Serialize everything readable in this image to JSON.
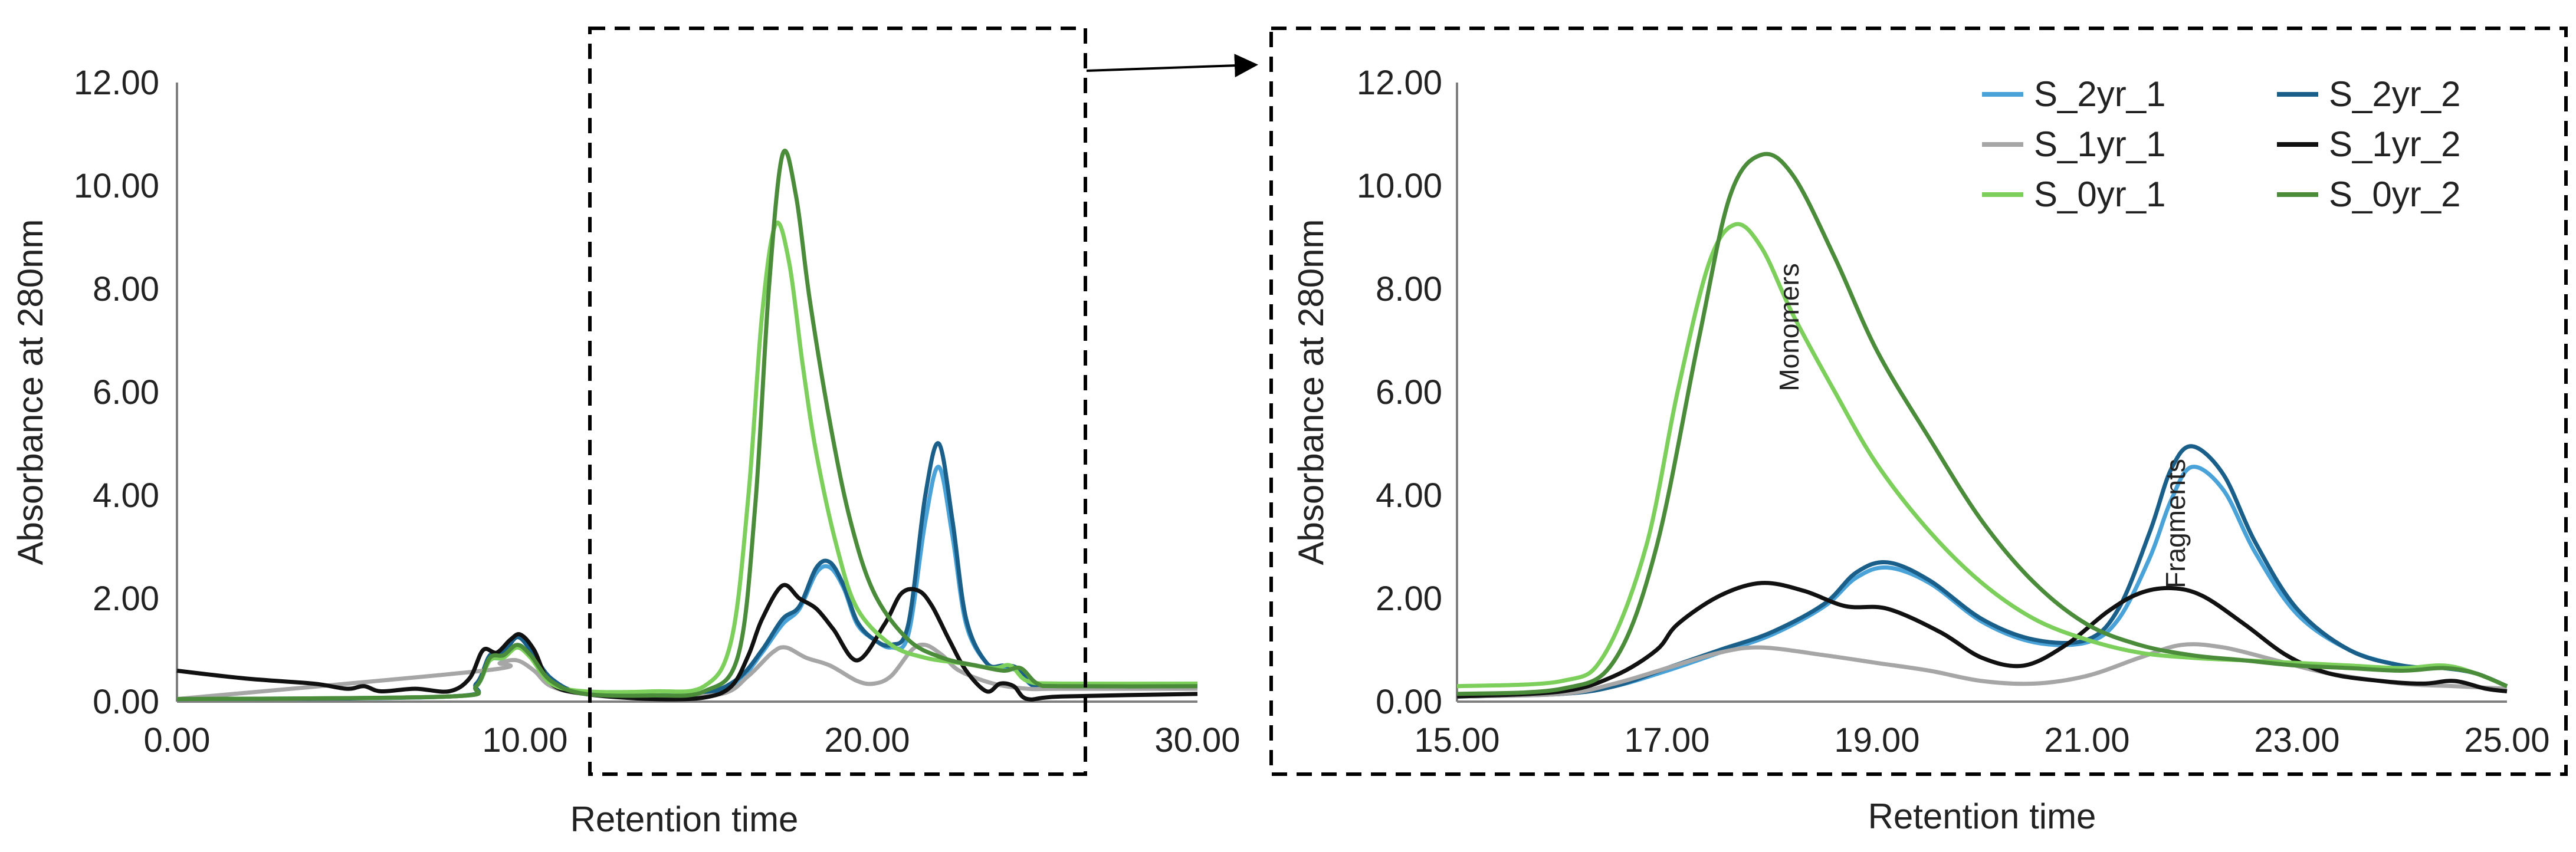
{
  "colors": {
    "axis": "#7f7f7f",
    "text": "#222222",
    "dashed_box": "#000000"
  },
  "chart_data": [
    {
      "id": "full",
      "type": "line",
      "xlabel": "Retention time",
      "ylabel": "Absorbance at 280nm",
      "xlim": [
        0,
        30
      ],
      "ylim": [
        0,
        12
      ],
      "xticks": [
        "0.00",
        "10.00",
        "20.00",
        "30.00"
      ],
      "yticks": [
        "0.00",
        "2.00",
        "4.00",
        "6.00",
        "8.00",
        "10.00",
        "12.00"
      ],
      "zoom_region": [
        12,
        27
      ],
      "grid": false,
      "series": [
        {
          "name": "S_2yr_1",
          "color": "#4aa3d8",
          "x": [
            0,
            8,
            8.8,
            9.2,
            9.6,
            10,
            10.4,
            11,
            12,
            14,
            15.5,
            16.5,
            17.2,
            17.8,
            18.3,
            18.8,
            19.2,
            19.6,
            20,
            20.5,
            21,
            21.5,
            22,
            22.4,
            22.8,
            23.2,
            23.8,
            24.3,
            24.7,
            25.2,
            26,
            30
          ],
          "y": [
            0.05,
            0.1,
            0.3,
            0.8,
            0.85,
            1.1,
            0.9,
            0.4,
            0.15,
            0.12,
            0.15,
            0.4,
            0.95,
            1.5,
            1.8,
            2.5,
            2.6,
            2.2,
            1.5,
            1.2,
            1.05,
            1.3,
            3.5,
            4.55,
            3.2,
            1.5,
            0.75,
            0.65,
            0.6,
            0.3,
            0.3,
            0.28
          ]
        },
        {
          "name": "S_2yr_2",
          "color": "#1a5f8a",
          "x": [
            0,
            8,
            8.8,
            9.2,
            9.6,
            10,
            10.4,
            11,
            12,
            14,
            15.5,
            16.5,
            17.2,
            17.8,
            18.3,
            18.8,
            19.2,
            19.6,
            20,
            20.5,
            21,
            21.5,
            22,
            22.4,
            22.8,
            23.2,
            23.8,
            24.3,
            24.7,
            25.2,
            26,
            30
          ],
          "y": [
            0.05,
            0.1,
            0.35,
            0.9,
            0.95,
            1.25,
            1.0,
            0.45,
            0.15,
            0.12,
            0.15,
            0.45,
            1.0,
            1.6,
            1.85,
            2.6,
            2.7,
            2.25,
            1.55,
            1.2,
            1.1,
            1.5,
            4.0,
            5.0,
            3.5,
            1.6,
            0.75,
            0.7,
            0.65,
            0.3,
            0.3,
            0.28
          ]
        },
        {
          "name": "S_1yr_1",
          "color": "#a6a6a6",
          "x": [
            0,
            9,
            9.5,
            10,
            10.5,
            11,
            12,
            14,
            16,
            16.8,
            17.5,
            17.9,
            18.5,
            19.2,
            20,
            20.5,
            21,
            21.6,
            22,
            22.5,
            23,
            24,
            25,
            26,
            30
          ],
          "y": [
            0.05,
            0.6,
            0.75,
            0.8,
            0.6,
            0.3,
            0.15,
            0.1,
            0.15,
            0.5,
            0.95,
            1.05,
            0.85,
            0.7,
            0.4,
            0.35,
            0.5,
            1.0,
            1.1,
            0.9,
            0.6,
            0.35,
            0.25,
            0.25,
            0.25
          ]
        },
        {
          "name": "S_1yr_2",
          "color": "#111111",
          "x": [
            0,
            2,
            4,
            5,
            5.5,
            6,
            7,
            8,
            8.6,
            9,
            9.4,
            9.8,
            10.1,
            10.5,
            11,
            12,
            14,
            15.5,
            16.3,
            16.8,
            17.2,
            17.8,
            18.3,
            18.8,
            19.3,
            20,
            20.8,
            21.3,
            21.8,
            22.2,
            22.7,
            23.2,
            23.8,
            24.2,
            24.6,
            25,
            26,
            30
          ],
          "y": [
            0.6,
            0.45,
            0.35,
            0.25,
            0.3,
            0.2,
            0.25,
            0.2,
            0.45,
            1.0,
            0.95,
            1.2,
            1.3,
            1.0,
            0.35,
            0.15,
            0.05,
            0.08,
            0.3,
            0.9,
            1.6,
            2.25,
            2.0,
            1.8,
            1.4,
            0.8,
            1.5,
            2.1,
            2.15,
            1.85,
            1.2,
            0.6,
            0.2,
            0.35,
            0.3,
            0.05,
            0.1,
            0.15
          ]
        },
        {
          "name": "S_0yr_1",
          "color": "#7ccf5a",
          "x": [
            0,
            8,
            8.8,
            9.2,
            9.6,
            10,
            10.4,
            11,
            12,
            14,
            15.5,
            16.3,
            16.8,
            17.2,
            17.6,
            18,
            18.4,
            18.8,
            19.4,
            20,
            21,
            22,
            23,
            24,
            24.5,
            25,
            26,
            30
          ],
          "y": [
            0.05,
            0.1,
            0.3,
            0.8,
            0.85,
            1.05,
            0.85,
            0.35,
            0.2,
            0.2,
            0.3,
            1.2,
            4.0,
            7.5,
            9.25,
            8.5,
            6.5,
            4.8,
            3.0,
            1.8,
            1.1,
            0.85,
            0.75,
            0.65,
            0.7,
            0.4,
            0.35,
            0.35
          ]
        },
        {
          "name": "S_0yr_2",
          "color": "#4a8c3a",
          "x": [
            0,
            8,
            8.8,
            9.2,
            9.6,
            10,
            10.4,
            11,
            12,
            14,
            15.5,
            16.5,
            17,
            17.4,
            17.8,
            18.2,
            18.6,
            19.2,
            19.8,
            20.5,
            21.5,
            22.5,
            23.5,
            24.3,
            24.8,
            25.3,
            26,
            30
          ],
          "y": [
            0.05,
            0.1,
            0.3,
            0.85,
            0.9,
            1.1,
            0.9,
            0.4,
            0.15,
            0.12,
            0.2,
            0.9,
            3.8,
            8.0,
            10.6,
            9.8,
            7.8,
            5.4,
            3.5,
            2.1,
            1.2,
            0.85,
            0.7,
            0.6,
            0.65,
            0.35,
            0.3,
            0.3
          ]
        }
      ]
    },
    {
      "id": "zoom",
      "type": "line",
      "xlabel": "Retention time",
      "ylabel": "Absorbance at 280nm",
      "xlim": [
        15,
        25
      ],
      "ylim": [
        0,
        12
      ],
      "xticks": [
        "15.00",
        "17.00",
        "19.00",
        "21.00",
        "23.00",
        "25.00"
      ],
      "yticks": [
        "0.00",
        "2.00",
        "4.00",
        "6.00",
        "8.00",
        "10.00",
        "12.00"
      ],
      "grid": false,
      "legend": "top-right",
      "annotations": [
        {
          "text": "Monomers",
          "x": 17.85,
          "y": 7.2
        },
        {
          "text": "Fragments",
          "x": 21.55,
          "y": 2.9
        }
      ],
      "series": [
        {
          "name": "S_2yr_1",
          "color": "#4aa3d8",
          "x": [
            15,
            16,
            16.5,
            17,
            17.5,
            18,
            18.5,
            18.8,
            19.1,
            19.5,
            20,
            20.5,
            21,
            21.3,
            21.6,
            21.8,
            22,
            22.3,
            22.6,
            23,
            23.5,
            24,
            24.4,
            24.7,
            25
          ],
          "y": [
            0.1,
            0.15,
            0.3,
            0.6,
            0.95,
            1.3,
            1.85,
            2.4,
            2.6,
            2.3,
            1.55,
            1.15,
            1.15,
            1.6,
            2.8,
            3.9,
            4.55,
            4.1,
            2.9,
            1.7,
            1.0,
            0.7,
            0.65,
            0.55,
            0.3
          ]
        },
        {
          "name": "S_2yr_2",
          "color": "#1a5f8a",
          "x": [
            15,
            16,
            16.5,
            17,
            17.5,
            18,
            18.5,
            18.8,
            19.1,
            19.5,
            20,
            20.5,
            21,
            21.3,
            21.6,
            21.8,
            22,
            22.3,
            22.6,
            23,
            23.5,
            24,
            24.4,
            24.7,
            25
          ],
          "y": [
            0.1,
            0.15,
            0.3,
            0.65,
            1.0,
            1.35,
            1.9,
            2.5,
            2.7,
            2.35,
            1.6,
            1.2,
            1.2,
            1.8,
            3.3,
            4.5,
            4.95,
            4.4,
            3.1,
            1.8,
            1.0,
            0.7,
            0.65,
            0.55,
            0.3
          ]
        },
        {
          "name": "S_1yr_1",
          "color": "#a6a6a6",
          "x": [
            15,
            16,
            16.5,
            17,
            17.5,
            17.9,
            18.5,
            19,
            19.5,
            20,
            20.5,
            21,
            21.5,
            21.9,
            22.3,
            22.8,
            23.3,
            24,
            24.5,
            25
          ],
          "y": [
            0.1,
            0.15,
            0.35,
            0.65,
            0.95,
            1.05,
            0.9,
            0.75,
            0.6,
            0.4,
            0.35,
            0.5,
            0.85,
            1.1,
            1.05,
            0.8,
            0.55,
            0.35,
            0.3,
            0.25
          ]
        },
        {
          "name": "S_1yr_2",
          "color": "#111111",
          "x": [
            15,
            16,
            16.5,
            16.9,
            17.1,
            17.5,
            17.9,
            18.3,
            18.7,
            19.1,
            19.6,
            20,
            20.4,
            20.8,
            21.2,
            21.5,
            21.8,
            22.1,
            22.5,
            22.9,
            23.3,
            23.8,
            24.2,
            24.5,
            24.8,
            25
          ],
          "y": [
            0.1,
            0.2,
            0.5,
            1.0,
            1.5,
            2.05,
            2.3,
            2.15,
            1.85,
            1.8,
            1.35,
            0.85,
            0.7,
            1.1,
            1.75,
            2.1,
            2.2,
            2.05,
            1.5,
            0.9,
            0.55,
            0.4,
            0.35,
            0.4,
            0.25,
            0.2
          ]
        },
        {
          "name": "S_0yr_1",
          "color": "#7ccf5a",
          "x": [
            15,
            16,
            16.4,
            16.8,
            17.1,
            17.4,
            17.65,
            17.9,
            18.2,
            18.6,
            19,
            19.5,
            20,
            20.5,
            21,
            21.5,
            22,
            22.5,
            23,
            23.5,
            24,
            24.4,
            24.7,
            25
          ],
          "y": [
            0.3,
            0.4,
            0.9,
            3.0,
            6.0,
            8.5,
            9.25,
            8.8,
            7.5,
            6.0,
            4.6,
            3.3,
            2.3,
            1.6,
            1.2,
            0.95,
            0.85,
            0.8,
            0.75,
            0.7,
            0.65,
            0.7,
            0.55,
            0.3
          ]
        },
        {
          "name": "S_0yr_2",
          "color": "#4a8c3a",
          "x": [
            15,
            16,
            16.5,
            16.9,
            17.3,
            17.6,
            17.9,
            18.2,
            18.6,
            19,
            19.5,
            20,
            20.5,
            21,
            21.5,
            22,
            22.5,
            23,
            23.5,
            24,
            24.4,
            24.7,
            25
          ],
          "y": [
            0.15,
            0.25,
            0.8,
            3.0,
            7.0,
            9.8,
            10.6,
            10.2,
            8.6,
            6.8,
            5.1,
            3.5,
            2.3,
            1.5,
            1.1,
            0.9,
            0.8,
            0.7,
            0.65,
            0.6,
            0.65,
            0.55,
            0.3
          ]
        }
      ]
    }
  ]
}
